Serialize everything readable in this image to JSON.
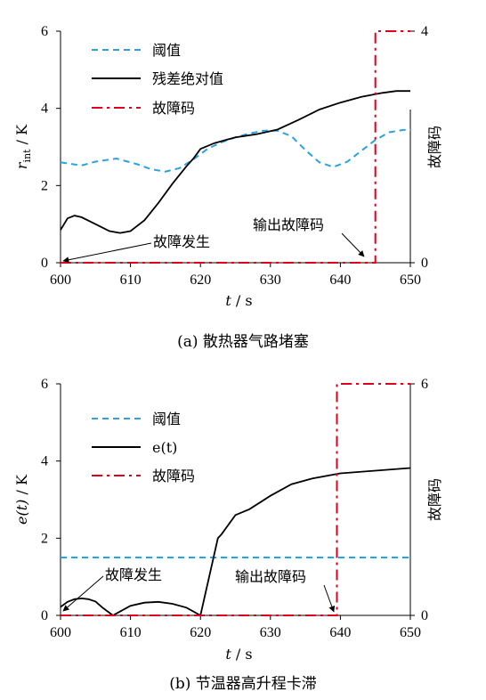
{
  "chart_data": [
    {
      "type": "line",
      "caption": "(a)   散热器气路堵塞",
      "xlabel_italic": "t",
      "xlabel_unit": " / s",
      "ylabel_main": "r",
      "ylabel_sub": "int",
      "ylabel_unit": " / K",
      "y2label": "故障码",
      "xlim": [
        600,
        650
      ],
      "ylim": [
        0,
        6
      ],
      "y2lim": [
        0,
        4
      ],
      "xticks": [
        "600",
        "610",
        "620",
        "630",
        "640",
        "650"
      ],
      "yticks": [
        "0",
        "2",
        "4",
        "6"
      ],
      "y2ticks": [
        "0",
        "4"
      ],
      "legend": [
        "阈值",
        "残差绝对值",
        "故障码"
      ],
      "annotations": [
        "故障发生",
        "输出故障码"
      ],
      "series": [
        {
          "name": "阈值",
          "color": "#29a3e0",
          "style": "dashed",
          "axis": "left",
          "x": [
            600,
            603,
            605,
            608,
            611,
            613,
            615,
            617,
            619,
            621,
            623,
            625,
            627,
            629,
            631,
            633,
            635,
            637,
            639,
            641,
            643,
            645,
            647,
            649,
            650
          ],
          "y": [
            2.6,
            2.52,
            2.62,
            2.7,
            2.55,
            2.42,
            2.36,
            2.45,
            2.68,
            2.95,
            3.12,
            3.25,
            3.35,
            3.42,
            3.42,
            3.28,
            2.92,
            2.6,
            2.48,
            2.62,
            2.9,
            3.18,
            3.38,
            3.44,
            3.44
          ]
        },
        {
          "name": "残差绝对值",
          "color": "#000000",
          "style": "solid",
          "axis": "left",
          "x": [
            600,
            601,
            602,
            603,
            605,
            607,
            608.5,
            610,
            612,
            614,
            616,
            618,
            619,
            620,
            622,
            625,
            628,
            631,
            634,
            637,
            640,
            643,
            646,
            648,
            650
          ],
          "y": [
            0.85,
            1.15,
            1.22,
            1.18,
            1.0,
            0.82,
            0.77,
            0.82,
            1.1,
            1.55,
            2.05,
            2.5,
            2.7,
            2.95,
            3.1,
            3.25,
            3.33,
            3.45,
            3.7,
            3.97,
            4.15,
            4.3,
            4.4,
            4.45,
            4.45
          ]
        },
        {
          "name": "故障码",
          "color": "#e0001b",
          "style": "dashdot",
          "axis": "right",
          "x": [
            600,
            645,
            645,
            650
          ],
          "y": [
            0,
            0,
            4,
            4
          ]
        }
      ]
    },
    {
      "type": "line",
      "caption": "(b)   节温器高升程卡滞",
      "xlabel_italic": "t",
      "xlabel_unit": " / s",
      "ylabel_main": "e(t)",
      "ylabel_unit": " / K",
      "y2label": "故障码",
      "xlim": [
        600,
        650
      ],
      "ylim": [
        0,
        6
      ],
      "y2lim": [
        0,
        6
      ],
      "xticks": [
        "600",
        "610",
        "620",
        "630",
        "640",
        "650"
      ],
      "yticks": [
        "0",
        "2",
        "4",
        "6"
      ],
      "y2ticks": [
        "0",
        "6"
      ],
      "legend": [
        "阈值",
        "e(t)",
        "故障码"
      ],
      "annotations": [
        "故障发生",
        "输出故障码"
      ],
      "series": [
        {
          "name": "阈值",
          "color": "#29a3e0",
          "style": "dashed",
          "axis": "left",
          "x": [
            600,
            650
          ],
          "y": [
            1.5,
            1.5
          ]
        },
        {
          "name": "e(t)",
          "color": "#000000",
          "style": "solid",
          "axis": "left",
          "x": [
            600,
            601,
            602,
            603,
            604,
            605,
            606,
            607.5,
            608.5,
            610,
            612,
            614,
            616,
            618,
            620,
            622.5,
            623,
            625,
            627,
            630,
            633,
            636,
            640,
            645,
            650
          ],
          "y": [
            0.22,
            0.35,
            0.42,
            0.44,
            0.42,
            0.36,
            0.2,
            0.0,
            0.1,
            0.25,
            0.33,
            0.35,
            0.3,
            0.2,
            0.0,
            2.0,
            2.1,
            2.6,
            2.75,
            3.1,
            3.4,
            3.55,
            3.68,
            3.75,
            3.82
          ]
        },
        {
          "name": "故障码",
          "color": "#e0001b",
          "style": "dashdot",
          "axis": "right",
          "x": [
            600,
            639.5,
            639.5,
            650
          ],
          "y": [
            0,
            0,
            6,
            6
          ]
        }
      ]
    }
  ]
}
